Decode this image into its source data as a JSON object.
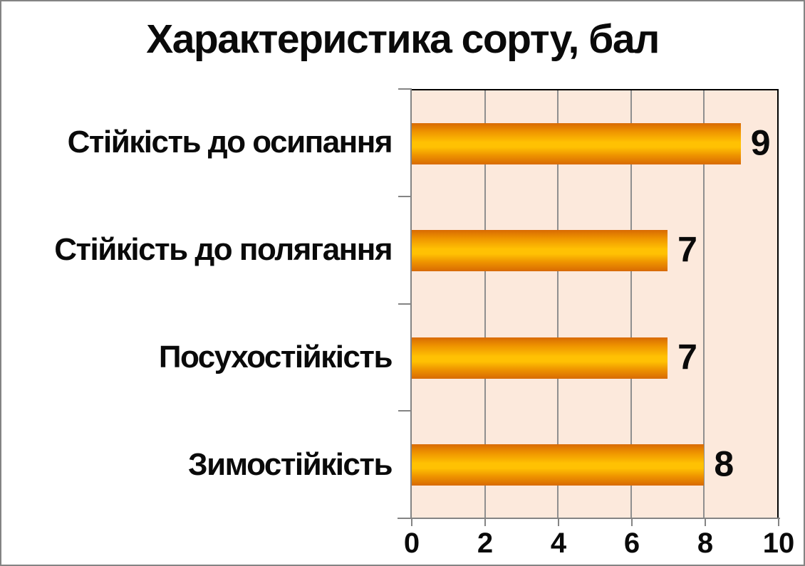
{
  "title": "Характеристика сорту, бал",
  "chart_data": {
    "type": "bar",
    "orientation": "horizontal",
    "title": "Характеристика сорту, бал",
    "categories": [
      "Стійкість до осипання",
      "Стійкість до полягання",
      "Посухостійкість",
      "Зимостійкість"
    ],
    "values": [
      9,
      7,
      7,
      8
    ],
    "data_labels": [
      9,
      7,
      7,
      8
    ],
    "xlabel": "",
    "ylabel": "",
    "xlim": [
      0,
      10
    ],
    "x_ticks": [
      0,
      2,
      4,
      6,
      8,
      10
    ],
    "grid": true,
    "legend": false,
    "colors": {
      "bar_edge_dark": "#d86a03",
      "bar_mid_dark": "#ee9300",
      "bar_highlight": "#ffc103",
      "plot_background": "#fce9dc",
      "plot_border": "#000000",
      "gridline": "#8f8f8f",
      "axis_line": "#848484",
      "text": "#0a0a0a",
      "outer_border": "#848484",
      "page_background": "#ffffff"
    }
  }
}
